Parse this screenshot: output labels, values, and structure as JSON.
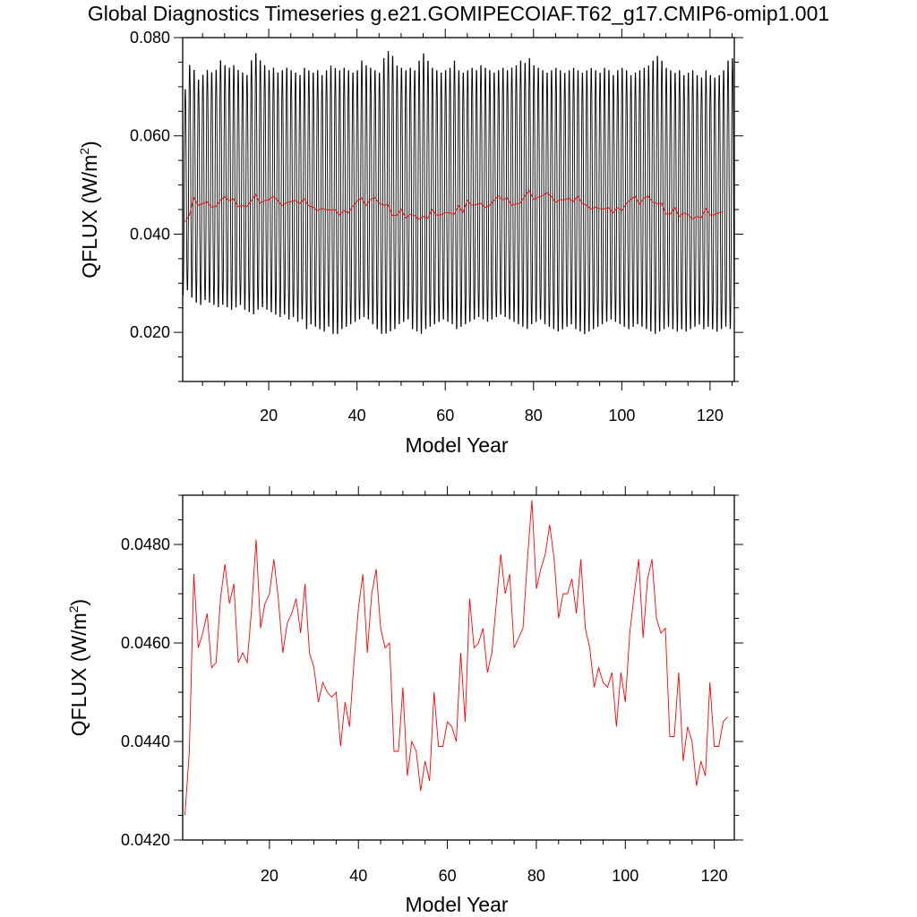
{
  "page": {
    "title": "Global Diagnostics Timeseries g.e21.GOMIPECOIAF.T62_g17.CMIP6-omip1.001"
  },
  "colors": {
    "monthly": "#000000",
    "annual": "#ff0000",
    "axes": "#000000"
  },
  "chart_data": [
    {
      "type": "line",
      "xlabel": "Model Year",
      "ylabel": "QFLUX (W/m2)",
      "ylabel_text": "QFLUX (W/m",
      "ylabel_sup": "2",
      "xlim": [
        0.5,
        125.5
      ],
      "ylim": [
        0.01,
        0.08
      ],
      "xticks": [
        20,
        40,
        60,
        80,
        100,
        120
      ],
      "xtick_labels": [
        "20",
        "40",
        "60",
        "80",
        "100",
        "120"
      ],
      "yticks": [
        0.02,
        0.04,
        0.06,
        0.08
      ],
      "ytick_labels": [
        "0.020",
        "0.040",
        "0.060",
        "0.080"
      ],
      "grid": false,
      "series": [
        {
          "color": "#000000",
          "description": "monthly global mean",
          "seasonal_peak": [
            0.07,
            0.075,
            0.074,
            0.072,
            0.073,
            0.074,
            0.0735,
            0.074,
            0.076,
            0.075,
            0.0745,
            0.075,
            0.074,
            0.0735,
            0.073,
            0.076,
            0.0775,
            0.076,
            0.075,
            0.074,
            0.0745,
            0.0735,
            0.074,
            0.0745,
            0.074,
            0.0735,
            0.073,
            0.0745,
            0.074,
            0.0735,
            0.074,
            0.073,
            0.074,
            0.075,
            0.0745,
            0.074,
            0.0745,
            0.074,
            0.0735,
            0.074,
            0.076,
            0.075,
            0.0745,
            0.074,
            0.0735,
            0.0765,
            0.078,
            0.077,
            0.075,
            0.0745,
            0.074,
            0.0745,
            0.074,
            0.076,
            0.0775,
            0.076,
            0.0745,
            0.074,
            0.0735,
            0.074,
            0.0745,
            0.076,
            0.074,
            0.0735,
            0.074,
            0.0745,
            0.074,
            0.075,
            0.0745,
            0.074,
            0.0735,
            0.074,
            0.0745,
            0.074,
            0.0745,
            0.075,
            0.076,
            0.0755,
            0.0765,
            0.075,
            0.0745,
            0.074,
            0.0735,
            0.074,
            0.0745,
            0.074,
            0.0735,
            0.074,
            0.0745,
            0.074,
            0.0735,
            0.074,
            0.0745,
            0.074,
            0.0735,
            0.0745,
            0.074,
            0.073,
            0.074,
            0.0745,
            0.074,
            0.073,
            0.0735,
            0.074,
            0.0745,
            0.075,
            0.076,
            0.077,
            0.076,
            0.0745,
            0.074,
            0.0735,
            0.074,
            0.073,
            0.0735,
            0.074,
            0.073,
            0.0725,
            0.074,
            0.073,
            0.0725,
            0.073,
            0.074,
            0.076,
            0.0765
          ],
          "seasonal_trough": [
            0.027,
            0.028,
            0.0265,
            0.0255,
            0.025,
            0.026,
            0.0255,
            0.025,
            0.0245,
            0.025,
            0.0245,
            0.024,
            0.0245,
            0.025,
            0.024,
            0.0235,
            0.023,
            0.024,
            0.0245,
            0.024,
            0.0235,
            0.023,
            0.0225,
            0.023,
            0.022,
            0.0225,
            0.0215,
            0.022,
            0.02,
            0.021,
            0.0205,
            0.02,
            0.0195,
            0.0205,
            0.019,
            0.019,
            0.02,
            0.0205,
            0.021,
            0.0215,
            0.022,
            0.0225,
            0.022,
            0.021,
            0.02,
            0.019,
            0.019,
            0.0195,
            0.02,
            0.021,
            0.0215,
            0.022,
            0.02,
            0.0195,
            0.019,
            0.02,
            0.0205,
            0.021,
            0.0215,
            0.022,
            0.0215,
            0.021,
            0.02,
            0.0205,
            0.021,
            0.0215,
            0.022,
            0.0225,
            0.022,
            0.0215,
            0.022,
            0.0225,
            0.023,
            0.0225,
            0.022,
            0.0215,
            0.021,
            0.0205,
            0.02,
            0.021,
            0.0215,
            0.022,
            0.021,
            0.0205,
            0.02,
            0.0195,
            0.02,
            0.0205,
            0.021,
            0.02,
            0.0195,
            0.019,
            0.0195,
            0.02,
            0.0205,
            0.021,
            0.0215,
            0.022,
            0.0215,
            0.021,
            0.0205,
            0.02,
            0.0205,
            0.021,
            0.0205,
            0.02,
            0.0195,
            0.019,
            0.0195,
            0.02,
            0.0205,
            0.02,
            0.0195,
            0.02,
            0.0195,
            0.02,
            0.0205,
            0.021,
            0.02,
            0.0205,
            0.02,
            0.0195,
            0.02,
            0.0205,
            0.02
          ]
        },
        {
          "color": "#ff0000",
          "description": "annual mean (same values as lower panel)"
        }
      ]
    },
    {
      "type": "line",
      "xlabel": "Model Year",
      "ylabel": "QFLUX (W/m2)",
      "ylabel_text": "QFLUX (W/m",
      "ylabel_sup": "2",
      "xlim": [
        0.5,
        124.5
      ],
      "ylim": [
        0.042,
        0.049
      ],
      "xticks": [
        20,
        40,
        60,
        80,
        100,
        120
      ],
      "xtick_labels": [
        "20",
        "40",
        "60",
        "80",
        "100",
        "120"
      ],
      "yticks": [
        0.042,
        0.044,
        0.046,
        0.048
      ],
      "ytick_labels": [
        "0.0420",
        "0.0440",
        "0.0460",
        "0.0480"
      ],
      "grid": false,
      "series": [
        {
          "color": "#ff0000",
          "description": "annual mean",
          "x_start": 1,
          "values": [
            0.0425,
            0.0438,
            0.0474,
            0.0459,
            0.0462,
            0.0466,
            0.0455,
            0.0456,
            0.0469,
            0.0476,
            0.0468,
            0.0472,
            0.0456,
            0.0458,
            0.0456,
            0.0467,
            0.0481,
            0.0463,
            0.0468,
            0.047,
            0.0477,
            0.0469,
            0.0458,
            0.0464,
            0.0466,
            0.0469,
            0.0462,
            0.0472,
            0.0458,
            0.0455,
            0.0448,
            0.0452,
            0.045,
            0.0449,
            0.045,
            0.0439,
            0.0448,
            0.0443,
            0.0456,
            0.0467,
            0.0474,
            0.0458,
            0.047,
            0.0475,
            0.0463,
            0.0459,
            0.046,
            0.0438,
            0.0438,
            0.0451,
            0.0433,
            0.044,
            0.0438,
            0.043,
            0.0436,
            0.0432,
            0.045,
            0.0439,
            0.0439,
            0.0444,
            0.0443,
            0.044,
            0.0458,
            0.0444,
            0.0469,
            0.0459,
            0.046,
            0.0463,
            0.0454,
            0.0458,
            0.0468,
            0.0478,
            0.047,
            0.0474,
            0.0459,
            0.0461,
            0.0463,
            0.0477,
            0.0489,
            0.0471,
            0.0475,
            0.0478,
            0.0484,
            0.0477,
            0.0465,
            0.047,
            0.047,
            0.0473,
            0.0466,
            0.0477,
            0.0463,
            0.0459,
            0.0451,
            0.0455,
            0.0452,
            0.0451,
            0.0454,
            0.0443,
            0.0454,
            0.0448,
            0.0462,
            0.047,
            0.0477,
            0.0461,
            0.0473,
            0.0477,
            0.0465,
            0.0462,
            0.0463,
            0.0441,
            0.0441,
            0.0454,
            0.0436,
            0.0443,
            0.044,
            0.0431,
            0.0436,
            0.0433,
            0.0452,
            0.0439,
            0.0439,
            0.0444,
            0.0445
          ]
        }
      ]
    }
  ]
}
